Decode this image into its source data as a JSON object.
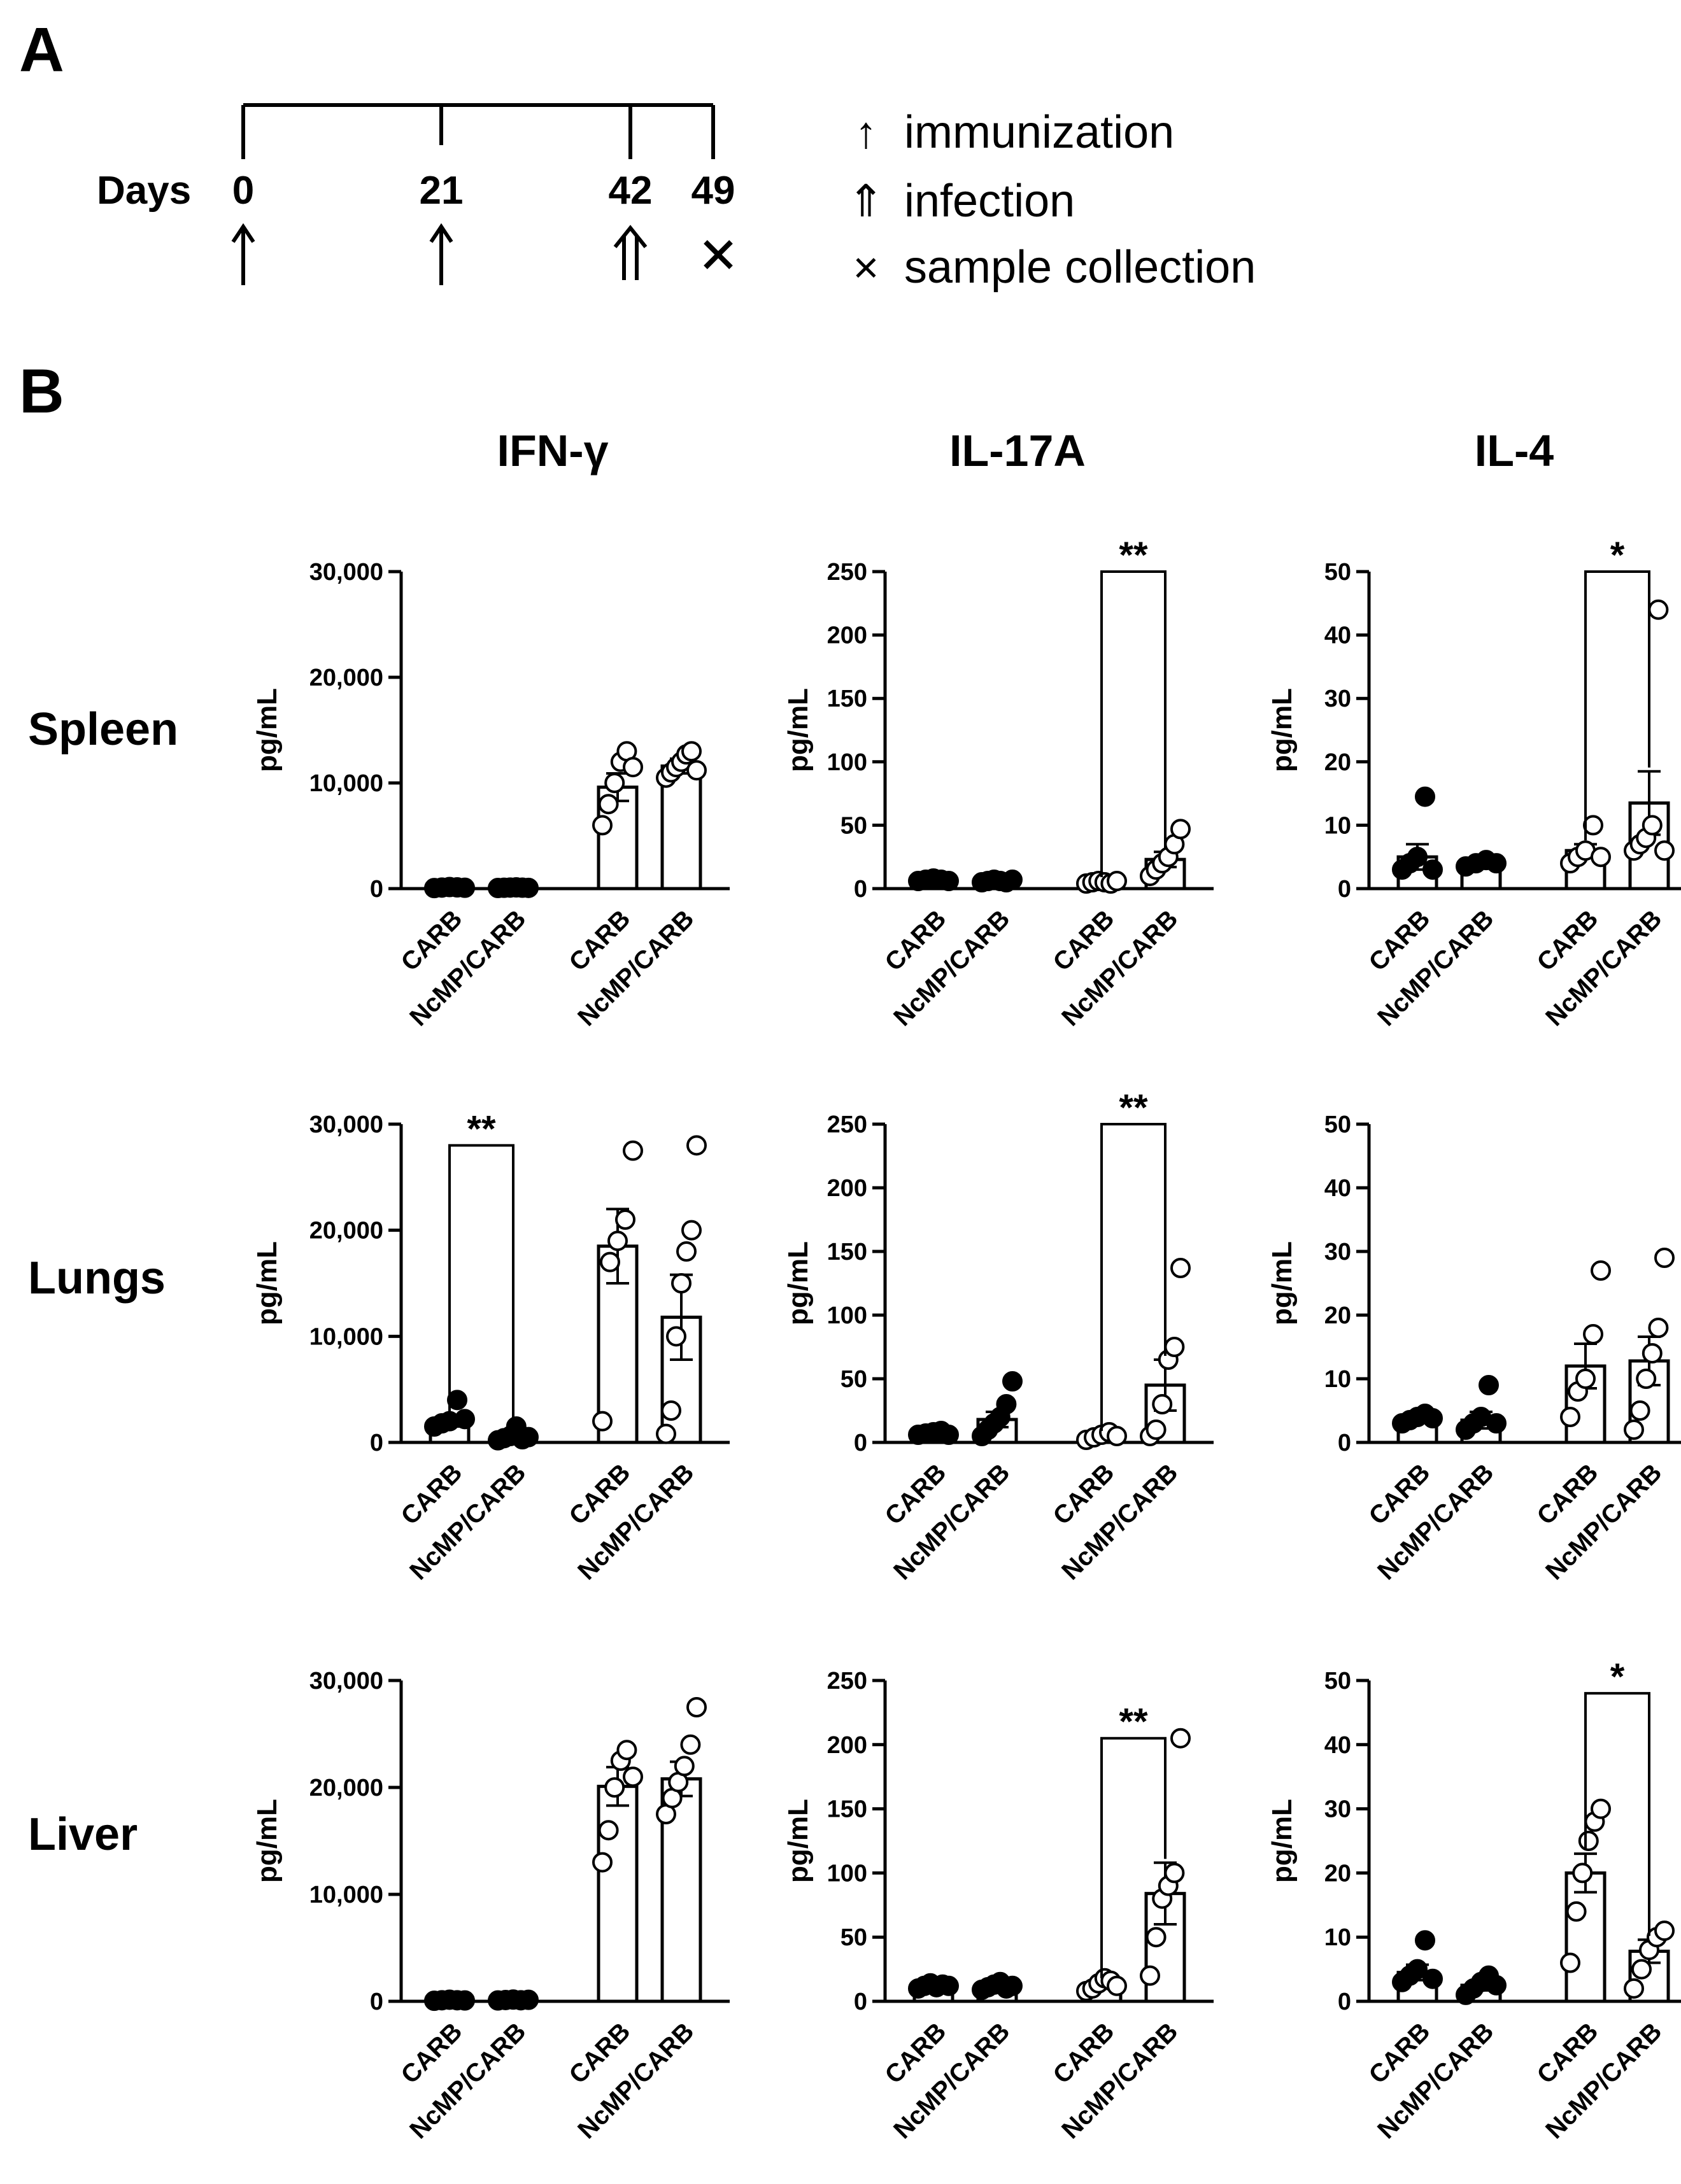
{
  "panel_a": {
    "label": "A",
    "timeline": {
      "days_label": "Days",
      "days": [
        "0",
        "21",
        "42",
        "49"
      ],
      "day_markers": [
        "immunization",
        "immunization",
        "infection",
        "sample collection"
      ]
    },
    "legend": [
      {
        "key": "immunization",
        "symbol": "↑",
        "text": "immunization"
      },
      {
        "key": "infection",
        "symbol": "⇑",
        "text": "infection"
      },
      {
        "key": "sample collection",
        "symbol": "×",
        "text": "sample collection"
      }
    ]
  },
  "panel_b": {
    "label": "B"
  },
  "columns": [
    "IFN-γ",
    "IL-17A",
    "IL-4"
  ],
  "rows": [
    "Spleen",
    "Lungs",
    "Liver"
  ],
  "colors": {
    "ink": "#000000",
    "open_fill": "#ffffff"
  },
  "chart_data": [
    {
      "type": "bar",
      "organ": "Spleen",
      "cytokine": "IFN-γ",
      "ylabel": "pg/mL",
      "ylim": [
        0,
        30000
      ],
      "yticks": [
        "0",
        "10,000",
        "20,000",
        "30,000"
      ],
      "ytick_values": [
        0,
        10000,
        20000,
        30000
      ],
      "categories": [
        "CARB",
        "NcMP/CARB",
        "CARB",
        "NcMP/CARB"
      ],
      "filled": [
        true,
        true,
        false,
        false
      ],
      "means": [
        100,
        80,
        9600,
        11600
      ],
      "sem": [
        60,
        50,
        1300,
        700
      ],
      "points": [
        [
          50,
          100,
          150,
          120,
          80
        ],
        [
          60,
          80,
          100,
          120,
          90,
          70
        ],
        [
          6000,
          8000,
          10000,
          12000,
          13000,
          11500
        ],
        [
          10500,
          11000,
          11500,
          12000,
          12700,
          13000,
          11200
        ]
      ],
      "significance": []
    },
    {
      "type": "bar",
      "organ": "Spleen",
      "cytokine": "IL-17A",
      "ylabel": "pg/mL",
      "ylim": [
        0,
        250
      ],
      "yticks": [
        "0",
        "50",
        "100",
        "150",
        "200",
        "250"
      ],
      "ytick_values": [
        0,
        50,
        100,
        150,
        200,
        250
      ],
      "categories": [
        "CARB",
        "NcMP/CARB",
        "CARB",
        "NcMP/CARB"
      ],
      "filled": [
        true,
        true,
        false,
        false
      ],
      "means": [
        7,
        6,
        5,
        23
      ],
      "sem": [
        1,
        1,
        1,
        6
      ],
      "points": [
        [
          6,
          7,
          8,
          7,
          6
        ],
        [
          5,
          6,
          7,
          6,
          5,
          7
        ],
        [
          4,
          5,
          6,
          5,
          4,
          6
        ],
        [
          10,
          15,
          20,
          25,
          35,
          47
        ]
      ],
      "significance": [
        {
          "pair": [
            2,
            3
          ],
          "label": "**",
          "y": 250
        }
      ]
    },
    {
      "type": "bar",
      "organ": "Spleen",
      "cytokine": "IL-4",
      "ylabel": "pg/mL",
      "ylim": [
        0,
        50
      ],
      "yticks": [
        "0",
        "10",
        "20",
        "30",
        "40",
        "50"
      ],
      "ytick_values": [
        0,
        10,
        20,
        30,
        40,
        50
      ],
      "categories": [
        "CARB",
        "NcMP/CARB",
        "CARB",
        "NcMP/CARB"
      ],
      "filled": [
        true,
        true,
        false,
        false
      ],
      "means": [
        5,
        4,
        6,
        13.5
      ],
      "sem": [
        2,
        0.5,
        1,
        5
      ],
      "points": [
        [
          3,
          4,
          5,
          14.5,
          3
        ],
        [
          3.5,
          4,
          4.5,
          4
        ],
        [
          4,
          5,
          6,
          10,
          5
        ],
        [
          6,
          7,
          8,
          10,
          44,
          6
        ]
      ],
      "significance": [
        {
          "pair": [
            2,
            3
          ],
          "label": "*",
          "y": 50
        }
      ]
    },
    {
      "type": "bar",
      "organ": "Lungs",
      "cytokine": "IFN-γ",
      "ylabel": "pg/mL",
      "ylim": [
        0,
        30000
      ],
      "yticks": [
        "0",
        "10,000",
        "20,000",
        "30,000"
      ],
      "ytick_values": [
        0,
        10000,
        20000,
        30000
      ],
      "categories": [
        "CARB",
        "NcMP/CARB",
        "CARB",
        "NcMP/CARB"
      ],
      "filled": [
        true,
        true,
        false,
        false
      ],
      "means": [
        2000,
        600,
        18500,
        11800
      ],
      "sem": [
        500,
        300,
        3500,
        4000
      ],
      "points": [
        [
          1500,
          1800,
          2000,
          4000,
          2200
        ],
        [
          200,
          400,
          600,
          1500,
          300,
          500
        ],
        [
          2000,
          17000,
          19000,
          21000,
          27500
        ],
        [
          800,
          3000,
          10000,
          15000,
          18000,
          20000,
          28000
        ]
      ],
      "significance": [
        {
          "pair": [
            0,
            1
          ],
          "label": "**",
          "y": 28000
        }
      ]
    },
    {
      "type": "bar",
      "organ": "Lungs",
      "cytokine": "IL-17A",
      "ylabel": "pg/mL",
      "ylim": [
        0,
        250
      ],
      "yticks": [
        "0",
        "50",
        "100",
        "150",
        "200",
        "250"
      ],
      "ytick_values": [
        0,
        50,
        100,
        150,
        200,
        250
      ],
      "categories": [
        "CARB",
        "NcMP/CARB",
        "CARB",
        "NcMP/CARB"
      ],
      "filled": [
        true,
        true,
        false,
        false
      ],
      "means": [
        7,
        18,
        5,
        45
      ],
      "sem": [
        1,
        6,
        1,
        20
      ],
      "points": [
        [
          6,
          7,
          8,
          9,
          6
        ],
        [
          5,
          10,
          15,
          20,
          30,
          48
        ],
        [
          2,
          4,
          6,
          8,
          5
        ],
        [
          5,
          10,
          30,
          65,
          75,
          137
        ]
      ],
      "significance": [
        {
          "pair": [
            2,
            3
          ],
          "label": "**",
          "y": 250
        }
      ]
    },
    {
      "type": "bar",
      "organ": "Lungs",
      "cytokine": "IL-4",
      "ylabel": "pg/mL",
      "ylim": [
        0,
        50
      ],
      "yticks": [
        "0",
        "10",
        "20",
        "30",
        "40",
        "50"
      ],
      "ytick_values": [
        0,
        10,
        20,
        30,
        40,
        50
      ],
      "categories": [
        "CARB",
        "NcMP/CARB",
        "CARB",
        "NcMP/CARB"
      ],
      "filled": [
        true,
        true,
        false,
        false
      ],
      "means": [
        4,
        3.5,
        12,
        12.8
      ],
      "sem": [
        0.5,
        1.3,
        3.5,
        3.8
      ],
      "points": [
        [
          3,
          3.5,
          4,
          4.5,
          3.8
        ],
        [
          2,
          3,
          4,
          9,
          3
        ],
        [
          4,
          8,
          10,
          17,
          27
        ],
        [
          2,
          5,
          10,
          14,
          18,
          29
        ]
      ],
      "significance": []
    },
    {
      "type": "bar",
      "organ": "Liver",
      "cytokine": "IFN-γ",
      "ylabel": "pg/mL",
      "ylim": [
        0,
        30000
      ],
      "yticks": [
        "0",
        "10,000",
        "20,000",
        "30,000"
      ],
      "ytick_values": [
        0,
        10000,
        20000,
        30000
      ],
      "categories": [
        "CARB",
        "NcMP/CARB",
        "CARB",
        "NcMP/CARB"
      ],
      "filled": [
        true,
        true,
        false,
        false
      ],
      "means": [
        100,
        120,
        20100,
        20800
      ],
      "sem": [
        50,
        50,
        1800,
        1600
      ],
      "points": [
        [
          50,
          100,
          150,
          100,
          80
        ],
        [
          80,
          120,
          160,
          100,
          140
        ],
        [
          13000,
          16000,
          20000,
          22500,
          23500,
          21000
        ],
        [
          17500,
          19000,
          20500,
          22000,
          24000,
          27500
        ]
      ],
      "significance": []
    },
    {
      "type": "bar",
      "organ": "Liver",
      "cytokine": "IL-17A",
      "ylabel": "pg/mL",
      "ylim": [
        0,
        250
      ],
      "yticks": [
        "0",
        "50",
        "100",
        "150",
        "200",
        "250"
      ],
      "ytick_values": [
        0,
        50,
        100,
        150,
        200,
        250
      ],
      "categories": [
        "CARB",
        "NcMP/CARB",
        "CARB",
        "NcMP/CARB"
      ],
      "filled": [
        true,
        true,
        false,
        false
      ],
      "means": [
        12,
        12,
        13,
        84
      ],
      "sem": [
        1.5,
        1.5,
        2,
        24
      ],
      "points": [
        [
          10,
          12,
          14,
          11,
          13,
          12
        ],
        [
          9,
          11,
          13,
          15,
          10,
          12
        ],
        [
          8,
          10,
          14,
          18,
          16,
          12
        ],
        [
          20,
          50,
          80,
          90,
          100,
          205
        ]
      ],
      "significance": [
        {
          "pair": [
            2,
            3
          ],
          "label": "**",
          "y": 205
        }
      ]
    },
    {
      "type": "bar",
      "organ": "Liver",
      "cytokine": "IL-4",
      "ylabel": "pg/mL",
      "ylim": [
        0,
        50
      ],
      "yticks": [
        "0",
        "10",
        "20",
        "30",
        "40",
        "50"
      ],
      "ytick_values": [
        0,
        10,
        20,
        30,
        40,
        50
      ],
      "categories": [
        "CARB",
        "NcMP/CARB",
        "CARB",
        "NcMP/CARB"
      ],
      "filled": [
        true,
        true,
        false,
        false
      ],
      "means": [
        4.5,
        2.5,
        20,
        7.8
      ],
      "sem": [
        1.2,
        0.8,
        3,
        1.8
      ],
      "points": [
        [
          3,
          4,
          5,
          9.5,
          3.5
        ],
        [
          1,
          2,
          3,
          4,
          2.5
        ],
        [
          6,
          14,
          20,
          25,
          28,
          30
        ],
        [
          2,
          5,
          8,
          10,
          11
        ]
      ],
      "significance": [
        {
          "pair": [
            2,
            3
          ],
          "label": "*",
          "y": 48
        }
      ]
    }
  ]
}
